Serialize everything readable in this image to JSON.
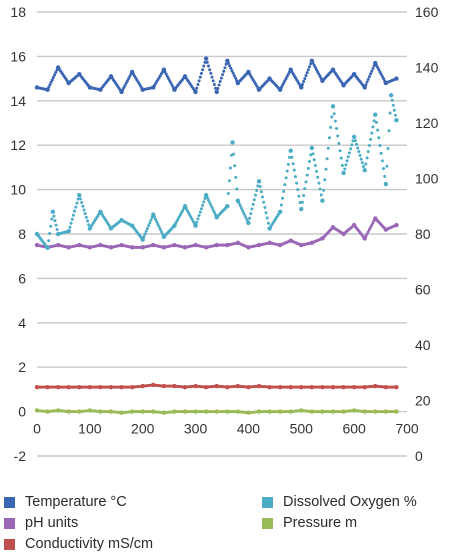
{
  "chart_data": {
    "type": "scatter",
    "x_ticks": [
      "0",
      "100",
      "200",
      "300",
      "400",
      "500",
      "600",
      "700"
    ],
    "xlim": [
      0,
      700
    ],
    "y_left_ticks": [
      "-2",
      "0",
      "2",
      "4",
      "6",
      "8",
      "10",
      "12",
      "14",
      "16",
      "18"
    ],
    "ylim_left": [
      -2,
      18
    ],
    "y_right_ticks": [
      "0",
      "20",
      "40",
      "60",
      "80",
      "100",
      "120",
      "140",
      "160"
    ],
    "ylim_right": [
      0,
      160
    ],
    "grid": true,
    "legend_position": "bottom",
    "series": [
      {
        "name": "Temperature °C",
        "color": "#3a66b4",
        "axis": "left",
        "marker": "dot",
        "x": [
          0,
          20,
          40,
          60,
          80,
          100,
          120,
          140,
          160,
          180,
          200,
          220,
          240,
          260,
          280,
          300,
          320,
          340,
          360,
          380,
          400,
          420,
          440,
          460,
          480,
          500,
          520,
          540,
          560,
          580,
          600,
          620,
          640,
          660,
          680
        ],
        "y": [
          14.6,
          14.5,
          15.5,
          14.8,
          15.2,
          14.6,
          14.5,
          15.1,
          14.4,
          15.3,
          14.5,
          14.6,
          15.4,
          14.5,
          15.1,
          14.4,
          15.9,
          14.4,
          15.8,
          14.8,
          15.3,
          14.5,
          15.0,
          14.5,
          15.4,
          14.6,
          15.8,
          14.9,
          15.4,
          14.7,
          15.2,
          14.6,
          15.7,
          14.8,
          15.0
        ]
      },
      {
        "name": "pH units",
        "color": "#9b66b6",
        "axis": "left",
        "marker": "dot",
        "x": [
          0,
          20,
          40,
          60,
          80,
          100,
          120,
          140,
          160,
          180,
          200,
          220,
          240,
          260,
          280,
          300,
          320,
          340,
          360,
          380,
          400,
          420,
          440,
          460,
          480,
          500,
          520,
          540,
          560,
          580,
          600,
          620,
          640,
          660,
          680
        ],
        "y": [
          7.5,
          7.4,
          7.5,
          7.4,
          7.5,
          7.4,
          7.5,
          7.4,
          7.5,
          7.4,
          7.4,
          7.5,
          7.4,
          7.5,
          7.4,
          7.5,
          7.4,
          7.5,
          7.5,
          7.6,
          7.4,
          7.5,
          7.6,
          7.5,
          7.7,
          7.5,
          7.6,
          7.8,
          8.3,
          8.0,
          8.4,
          7.8,
          8.7,
          8.2,
          8.4
        ]
      },
      {
        "name": "Conductivity mS/cm",
        "color": "#c0504d",
        "axis": "left",
        "marker": "dot",
        "x": [
          0,
          20,
          40,
          60,
          80,
          100,
          120,
          140,
          160,
          180,
          200,
          220,
          240,
          260,
          280,
          300,
          320,
          340,
          360,
          380,
          400,
          420,
          440,
          460,
          480,
          500,
          520,
          540,
          560,
          580,
          600,
          620,
          640,
          660,
          680
        ],
        "y": [
          1.1,
          1.1,
          1.1,
          1.1,
          1.1,
          1.1,
          1.1,
          1.1,
          1.1,
          1.1,
          1.15,
          1.2,
          1.15,
          1.15,
          1.1,
          1.15,
          1.1,
          1.15,
          1.1,
          1.15,
          1.1,
          1.15,
          1.1,
          1.1,
          1.1,
          1.1,
          1.1,
          1.1,
          1.1,
          1.1,
          1.1,
          1.1,
          1.15,
          1.1,
          1.1
        ]
      },
      {
        "name": "Dissolved Oxygen %",
        "color": "#4bacc6",
        "axis": "right",
        "marker": "dot",
        "x": [
          0,
          20,
          30,
          40,
          60,
          80,
          100,
          120,
          140,
          160,
          180,
          200,
          220,
          240,
          260,
          280,
          300,
          320,
          340,
          360,
          370,
          380,
          400,
          420,
          440,
          460,
          480,
          500,
          520,
          540,
          560,
          580,
          600,
          620,
          640,
          660,
          670,
          680
        ],
        "y": [
          80,
          75,
          88,
          80,
          81,
          94,
          82,
          88,
          82,
          85,
          83,
          78,
          87,
          79,
          83,
          90,
          83,
          94,
          86,
          90,
          113,
          92,
          84,
          99,
          82,
          88,
          110,
          89,
          111,
          92,
          126,
          102,
          115,
          103,
          123,
          98,
          130,
          121
        ]
      },
      {
        "name": "Pressure m",
        "color": "#9bbb59",
        "axis": "left",
        "marker": "dot",
        "x": [
          0,
          20,
          40,
          60,
          80,
          100,
          120,
          140,
          160,
          180,
          200,
          220,
          240,
          260,
          280,
          300,
          320,
          340,
          360,
          380,
          400,
          420,
          440,
          460,
          480,
          500,
          520,
          540,
          560,
          580,
          600,
          620,
          640,
          660,
          680
        ],
        "y": [
          0.05,
          0.0,
          0.05,
          0.0,
          0.0,
          0.05,
          0.0,
          0.0,
          -0.05,
          0.0,
          0.0,
          0.0,
          -0.05,
          0.0,
          0.0,
          0.0,
          0.0,
          0.0,
          0.0,
          0.0,
          -0.05,
          0.0,
          0.0,
          0.0,
          0.0,
          0.05,
          0.0,
          0.0,
          0.0,
          0.0,
          0.05,
          0.0,
          0.0,
          0.0,
          0.0
        ]
      }
    ]
  }
}
